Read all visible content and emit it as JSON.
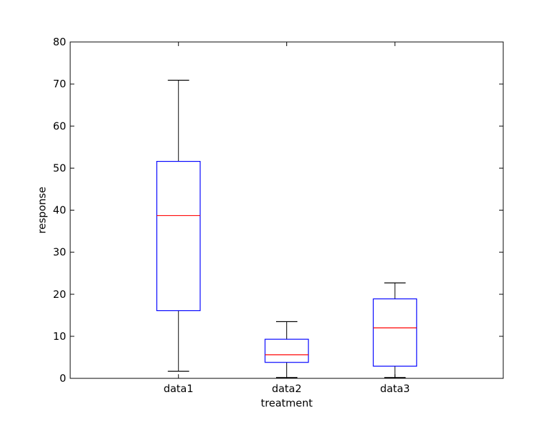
{
  "chart_data": {
    "type": "box",
    "title": "",
    "xlabel": "treatment",
    "ylabel": "response",
    "ylim": [
      0,
      80
    ],
    "yticks": [
      0,
      10,
      20,
      30,
      40,
      50,
      60,
      70,
      80
    ],
    "categories": [
      "data1",
      "data2",
      "data3"
    ],
    "grid": false,
    "box_color": "#0000ff",
    "median_color": "#ff0000",
    "whisker_color": "#000000",
    "series": [
      {
        "category": "data1",
        "whisker_low": 1.7,
        "q1": 16.1,
        "median": 38.7,
        "q3": 51.6,
        "whisker_high": 70.9
      },
      {
        "category": "data2",
        "whisker_low": 0.2,
        "q1": 3.8,
        "median": 5.6,
        "q3": 9.3,
        "whisker_high": 13.5
      },
      {
        "category": "data3",
        "whisker_low": 0.2,
        "q1": 2.9,
        "median": 12.0,
        "q3": 18.9,
        "whisker_high": 22.7
      }
    ]
  }
}
